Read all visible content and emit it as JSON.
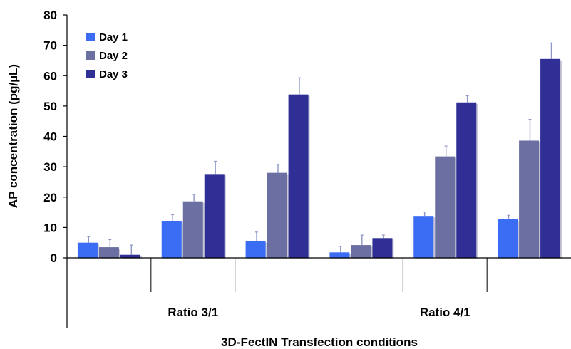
{
  "chart_data": {
    "type": "bar",
    "title": "",
    "xlabel": "3D-FectIN Transfection conditions",
    "ylabel": "AP concentration (pg/µL)",
    "ylim": [
      0,
      80
    ],
    "yticks": [
      0,
      10,
      20,
      30,
      40,
      50,
      60,
      70,
      80
    ],
    "grid": false,
    "legend_position": "top-left",
    "group_labels": [
      {
        "label": "Ratio 3/1",
        "spans_categories": [
          0,
          1,
          2
        ]
      },
      {
        "label": "Ratio 4/1",
        "spans_categories": [
          3,
          4,
          5
        ]
      }
    ],
    "categories": [
      "",
      "",
      "",
      "",
      "",
      ""
    ],
    "series": [
      {
        "name": "Day 1",
        "color": "#3a6cf4",
        "values": [
          5.0,
          12.2,
          5.5,
          1.8,
          13.8,
          12.7
        ],
        "errors": [
          2.0,
          2.0,
          3.0,
          2.0,
          1.3,
          1.3
        ]
      },
      {
        "name": "Day 2",
        "color": "#6b6fa2",
        "values": [
          3.5,
          18.6,
          28.0,
          4.2,
          33.4,
          38.6
        ],
        "errors": [
          2.5,
          2.3,
          2.8,
          3.3,
          3.4,
          7.0
        ]
      },
      {
        "name": "Day 3",
        "color": "#302f96",
        "values": [
          1.0,
          27.6,
          53.8,
          6.5,
          51.2,
          65.5
        ],
        "errors": [
          3.2,
          4.2,
          5.5,
          1.0,
          2.2,
          5.3
        ]
      }
    ]
  }
}
